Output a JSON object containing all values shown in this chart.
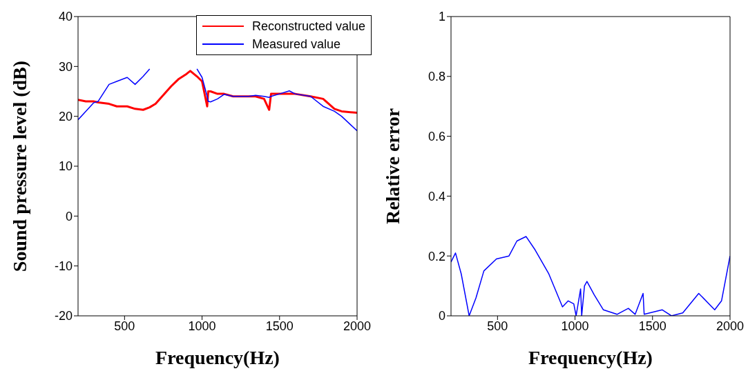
{
  "chart_data": [
    {
      "type": "line",
      "xlabel": "Frequency(Hz)",
      "ylabel": "Sound  pressure level (dB)",
      "xlim": [
        200,
        2000
      ],
      "xticks": [
        500,
        1000,
        1500,
        2000
      ],
      "ylim": [
        -20,
        40
      ],
      "yticks": [
        -20,
        -10,
        0,
        10,
        20,
        30,
        40
      ],
      "legend": "top right",
      "grid": false,
      "x": [
        200,
        250,
        300,
        330,
        400,
        450,
        517,
        568,
        620,
        662,
        700,
        800,
        850,
        900,
        924,
        967,
        1000,
        1033,
        1040,
        1055,
        1100,
        1142,
        1200,
        1300,
        1345,
        1400,
        1433,
        1445,
        1500,
        1563,
        1600,
        1700,
        1781,
        1854,
        1900,
        2000
      ],
      "series": [
        {
          "name": "Reconstructed value",
          "color": "#ff0000",
          "values": [
            23.3,
            23,
            23,
            22.8,
            22.5,
            22,
            22,
            21.5,
            21.3,
            21.8,
            22.5,
            26,
            27.5,
            28.5,
            29.1,
            28,
            27,
            22,
            25,
            25,
            24.5,
            24.5,
            24,
            24,
            24,
            23.5,
            21.3,
            24.5,
            24.5,
            24.5,
            24.5,
            24,
            23.5,
            21.5,
            21,
            20.7
          ]
        },
        {
          "name": "Measured value",
          "color": "#0000ff",
          "values": [
            19.3,
            21,
            22.7,
            23,
            26.4,
            27,
            27.8,
            26.4,
            28,
            29.5,
            null,
            null,
            null,
            null,
            null,
            29.5,
            27.8,
            24,
            23,
            22.9,
            23.5,
            24.4,
            24,
            24,
            24.2,
            24,
            23.8,
            24,
            24.5,
            25.1,
            24.5,
            24,
            22,
            21,
            20,
            17.1
          ]
        }
      ]
    },
    {
      "type": "line",
      "xlabel": "Frequency(Hz)",
      "ylabel": "Relative error",
      "xlim": [
        200,
        2000
      ],
      "xticks": [
        500,
        1000,
        1500,
        2000
      ],
      "ylim": [
        0,
        1
      ],
      "yticks": [
        0,
        0.2,
        0.4,
        0.6,
        0.8,
        1
      ],
      "grid": false,
      "x": [
        200,
        229,
        266,
        317,
        361,
        412,
        493,
        574,
        625,
        684,
        743,
        831,
        919,
        956,
        992,
        1007,
        1036,
        1043,
        1061,
        1077,
        1124,
        1183,
        1271,
        1344,
        1388,
        1439,
        1446,
        1563,
        1622,
        1695,
        1798,
        1901,
        1945,
        2000
      ],
      "series": [
        {
          "color": "#0000ff",
          "values": [
            0.18,
            0.21,
            0.14,
            0.0,
            0.06,
            0.15,
            0.19,
            0.2,
            0.25,
            0.265,
            0.22,
            0.14,
            0.03,
            0.05,
            0.04,
            0.0,
            0.09,
            0.0,
            0.1,
            0.115,
            0.07,
            0.02,
            0.005,
            0.025,
            0.005,
            0.075,
            0.005,
            0.02,
            0.0,
            0.01,
            0.075,
            0.02,
            0.05,
            0.2
          ]
        }
      ]
    }
  ]
}
